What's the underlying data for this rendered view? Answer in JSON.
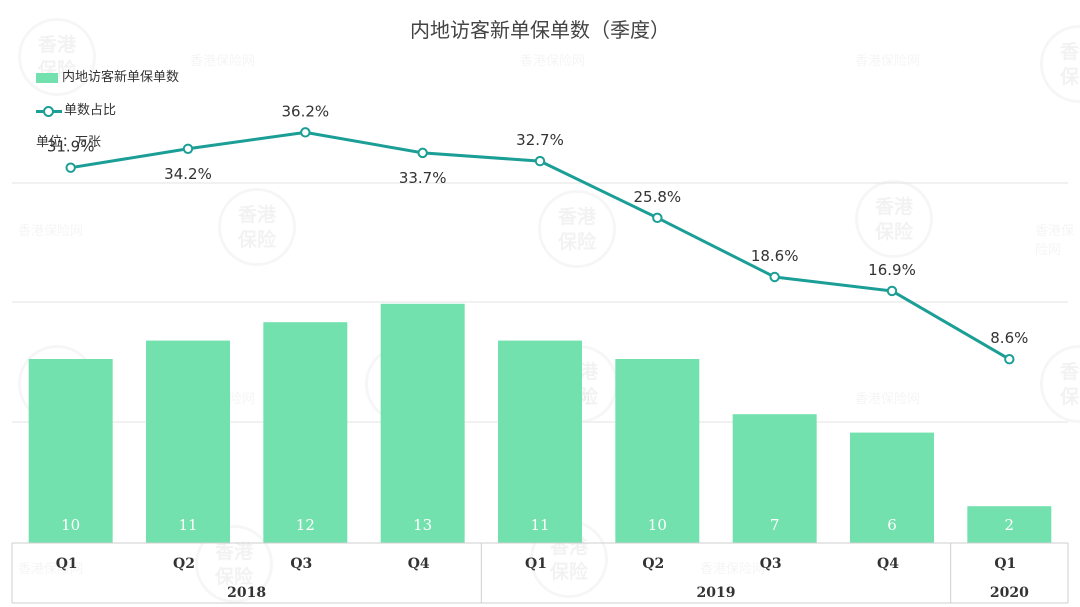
{
  "title": "内地访客新单保单数（季度）",
  "legend": {
    "bar_label": "内地访客新单保单数",
    "line_label": "单数占比"
  },
  "unit_label": "单位：万张",
  "watermark": {
    "logo_line1": "香港",
    "logo_line2": "保险",
    "text": "香港保险网"
  },
  "colors": {
    "bar": "#72e1ae",
    "line": "#1a9e96",
    "grid": "#e3e3e3",
    "axis": "#cfcfcf",
    "text": "#333333"
  },
  "chart_data": {
    "type": "bar",
    "title": "内地访客新单保单数（季度）",
    "categories": [
      "Q1",
      "Q2",
      "Q3",
      "Q4",
      "Q1",
      "Q2",
      "Q3",
      "Q4",
      "Q1"
    ],
    "groups": [
      {
        "label": "2018",
        "count": 4
      },
      {
        "label": "2019",
        "count": 4
      },
      {
        "label": "2020",
        "count": 1
      }
    ],
    "series": [
      {
        "name": "内地访客新单保单数",
        "type": "bar",
        "values": [
          10,
          11,
          12,
          13,
          11,
          10,
          7,
          6,
          2
        ],
        "labels": [
          "10",
          "11",
          "12",
          "13",
          "11",
          "10",
          "7",
          "6",
          "2"
        ]
      },
      {
        "name": "单数占比",
        "type": "line",
        "values": [
          31.9,
          34.2,
          36.2,
          33.7,
          32.7,
          25.8,
          18.6,
          16.9,
          8.6
        ],
        "labels": [
          "31.9%",
          "34.2%",
          "36.2%",
          "33.7%",
          "32.7%",
          "25.8%",
          "18.6%",
          "16.9%",
          "8.6%"
        ]
      }
    ],
    "ylim_bars": [
      0,
      16
    ],
    "ylim_line": [
      0,
      45
    ],
    "grid": true,
    "legend_position": "top-left"
  }
}
